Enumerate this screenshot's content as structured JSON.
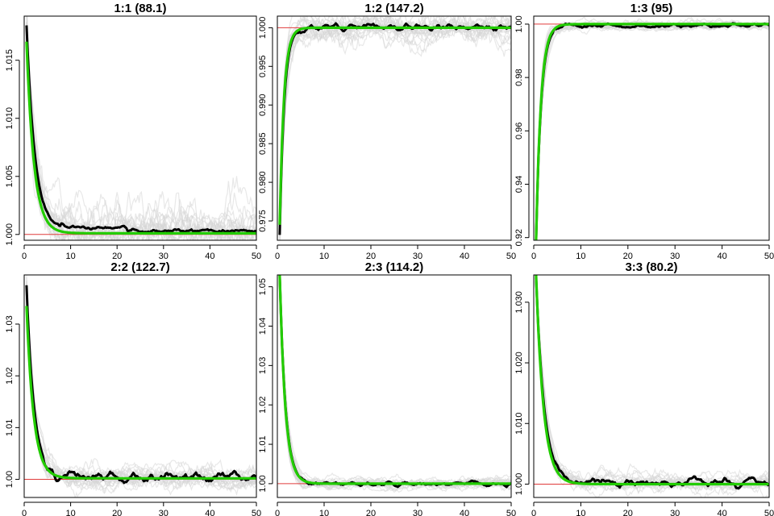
{
  "colors": {
    "background": "#ffffff",
    "frame": "#000000",
    "replicates": "#d6d6d6",
    "mean": "#000000",
    "fit": "#22cc00",
    "reference": "#e03c3c"
  },
  "chart_data": [
    {
      "type": "line",
      "title": "1:1 (88.1)",
      "xlabel": "",
      "ylabel": "",
      "xlim": [
        0,
        50
      ],
      "ylim": [
        0.9995,
        1.0188
      ],
      "xticks": [
        0,
        10,
        20,
        30,
        40,
        50
      ],
      "xtick_labels": [
        "0",
        "10",
        "20",
        "30",
        "40",
        "50"
      ],
      "yticks": [
        1.0,
        1.005,
        1.01,
        1.015
      ],
      "ytick_labels": [
        "1.000",
        "1.005",
        "1.010",
        "1.015"
      ],
      "reference_y": 1.0,
      "start": 1.018,
      "end": 1.0003,
      "rate": 0.55,
      "fit": {
        "start": 1.0166,
        "end": 1.0001,
        "rate": 0.62
      },
      "noise": 0.00016,
      "bias_window": [
        8,
        22
      ],
      "bias": 0.0003,
      "replicate_noise": 0.0012,
      "replicate_count": 20,
      "grid": false,
      "legend": "none"
    },
    {
      "type": "line",
      "title": "1:2 (147.2)",
      "xlabel": "",
      "ylabel": "",
      "xlim": [
        0,
        50
      ],
      "ylim": [
        0.9725,
        1.0015
      ],
      "xticks": [
        0,
        10,
        20,
        30,
        40,
        50
      ],
      "xtick_labels": [
        "0",
        "10",
        "20",
        "30",
        "40",
        "50"
      ],
      "yticks": [
        0.975,
        0.98,
        0.985,
        0.99,
        0.995,
        1.0
      ],
      "ytick_labels": [
        "0.975",
        "0.980",
        "0.985",
        "0.990",
        "0.995",
        "1.000"
      ],
      "reference_y": 1.0,
      "start": 0.9732,
      "end": 1.0,
      "rate": 1.05,
      "fit": {
        "start": 0.9745,
        "end": 1.0,
        "rate": 1.1
      },
      "noise": 0.00035,
      "bias_window": [
        0,
        0
      ],
      "bias": 0,
      "replicate_noise": 0.0018,
      "replicate_count": 20,
      "grid": false,
      "legend": "none"
    },
    {
      "type": "line",
      "title": "1:3 (95)",
      "xlabel": "",
      "ylabel": "",
      "xlim": [
        0,
        50
      ],
      "ylim": [
        0.919,
        1.003
      ],
      "xticks": [
        0,
        10,
        20,
        30,
        40,
        50
      ],
      "xtick_labels": [
        "0",
        "10",
        "20",
        "30",
        "40",
        "50"
      ],
      "yticks": [
        0.92,
        0.94,
        0.96,
        0.98,
        1.0
      ],
      "ytick_labels": [
        "0.92",
        "0.94",
        "0.96",
        "0.98",
        "1.00"
      ],
      "reference_y": 1.0,
      "start": 0.919,
      "end": 0.9995,
      "rate": 0.95,
      "fit": {
        "start": 0.919,
        "end": 1.0,
        "rate": 0.97
      },
      "noise": 0.0006,
      "bias_window": [
        0,
        0
      ],
      "bias": 0,
      "replicate_noise": 0.0015,
      "replicate_count": 20,
      "grid": false,
      "legend": "none"
    },
    {
      "type": "line",
      "title": "2:2 (122.7)",
      "xlabel": "",
      "ylabel": "",
      "xlim": [
        0,
        50
      ],
      "ylim": [
        0.9965,
        1.0395
      ],
      "xticks": [
        0,
        10,
        20,
        30,
        40,
        50
      ],
      "xtick_labels": [
        "0",
        "10",
        "20",
        "30",
        "40",
        "50"
      ],
      "yticks": [
        1.0,
        1.01,
        1.02,
        1.03
      ],
      "ytick_labels": [
        "1.00",
        "1.01",
        "1.02",
        "1.03"
      ],
      "reference_y": 1.0,
      "start": 1.0375,
      "end": 1.0004,
      "rate": 0.62,
      "fit": {
        "start": 1.0335,
        "end": 1.0002,
        "rate": 0.65
      },
      "noise": 0.0008,
      "bias_window": [
        0,
        0
      ],
      "bias": 0,
      "replicate_noise": 0.0022,
      "replicate_count": 20,
      "grid": false,
      "legend": "none"
    },
    {
      "type": "line",
      "title": "2:3 (114.2)",
      "xlabel": "",
      "ylabel": "",
      "xlim": [
        0,
        50
      ],
      "ylim": [
        0.9965,
        1.053
      ],
      "xticks": [
        0,
        10,
        20,
        30,
        40,
        50
      ],
      "xtick_labels": [
        "0",
        "10",
        "20",
        "30",
        "40",
        "50"
      ],
      "yticks": [
        1.0,
        1.01,
        1.02,
        1.03,
        1.04,
        1.05
      ],
      "ytick_labels": [
        "1.00",
        "1.01",
        "1.02",
        "1.03",
        "1.04",
        "1.05"
      ],
      "reference_y": 1.0,
      "start": 1.053,
      "end": 1.0,
      "rate": 0.8,
      "fit": {
        "start": 1.053,
        "end": 1.0,
        "rate": 0.82
      },
      "noise": 0.00045,
      "bias_window": [
        0,
        0
      ],
      "bias": 0,
      "replicate_noise": 0.0012,
      "replicate_count": 20,
      "grid": false,
      "legend": "none"
    },
    {
      "type": "line",
      "title": "3:3 (80.2)",
      "xlabel": "",
      "ylabel": "",
      "xlim": [
        0,
        50
      ],
      "ylim": [
        0.9978,
        1.0345
      ],
      "xticks": [
        0,
        10,
        20,
        30,
        40,
        50
      ],
      "xtick_labels": [
        "0",
        "10",
        "20",
        "30",
        "40",
        "50"
      ],
      "yticks": [
        1.0,
        1.01,
        1.02,
        1.03
      ],
      "ytick_labels": [
        "1.000",
        "1.010",
        "1.020",
        "1.030"
      ],
      "reference_y": 1.0,
      "start": 1.034,
      "end": 1.0002,
      "rate": 0.58,
      "fit": {
        "start": 1.0345,
        "end": 1.0,
        "rate": 0.63
      },
      "noise": 0.00055,
      "bias_window": [
        0,
        0
      ],
      "bias": 0,
      "replicate_noise": 0.0014,
      "replicate_count": 20,
      "grid": false,
      "legend": "none"
    }
  ]
}
